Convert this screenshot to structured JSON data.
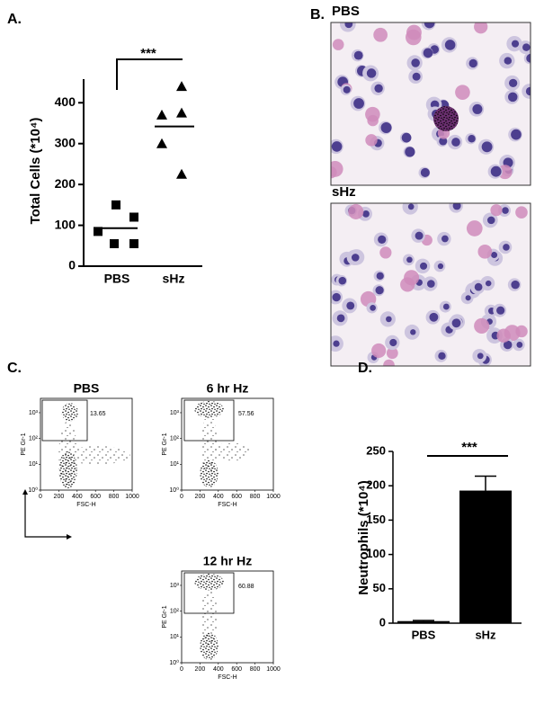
{
  "chart_data": [
    {
      "type": "dot",
      "panel": "A.",
      "categories": [
        "PBS",
        "sHz"
      ],
      "values": [
        [
          150,
          120,
          85,
          55,
          55
        ],
        [
          440,
          370,
          375,
          300,
          225
        ]
      ],
      "means": [
        93,
        342
      ],
      "markers": [
        "square",
        "triangle"
      ],
      "color": "#000000",
      "ylabel": "Total Cells (*10⁴)",
      "ylim": [
        0,
        460
      ],
      "yticks": [
        0,
        100,
        200,
        300,
        400
      ],
      "annotation": "***"
    },
    {
      "type": "micrograph",
      "panel": "B.",
      "titles": [
        "PBS",
        "sHz"
      ]
    },
    {
      "type": "flow",
      "panel": "C.",
      "plots": [
        {
          "title": "PBS",
          "gate": 13.65
        },
        {
          "title": "6 hr Hz",
          "gate": 57.56
        },
        {
          "title": "12 hr Hz",
          "gate": 60.88
        }
      ],
      "xlabel": "FSC-H",
      "ylabel": "PE Gr-1",
      "xlim": [
        0,
        1000
      ],
      "xticks": [
        0,
        200,
        400,
        600,
        800,
        1000
      ],
      "ylog": true,
      "ylim": [
        1,
        3600
      ],
      "yticks": [
        {
          "value": 1,
          "label": "10⁰"
        },
        {
          "value": 10,
          "label": "10¹"
        },
        {
          "value": 100,
          "label": "10²"
        },
        {
          "value": 1000,
          "label": "10³"
        }
      ]
    },
    {
      "type": "bar",
      "panel": "D.",
      "categories": [
        "PBS",
        "sHz"
      ],
      "values": [
        3,
        193
      ],
      "errors": [
        1,
        21
      ],
      "color": "#000000",
      "ylabel": "Neutrophils (*10⁴)",
      "ylim": [
        0,
        250
      ],
      "yticks": [
        0,
        50,
        100,
        150,
        200,
        250
      ],
      "annotation": "***"
    }
  ]
}
